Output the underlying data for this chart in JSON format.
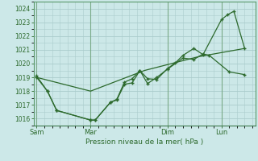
{
  "xlabel": "Pression niveau de la mer( hPa )",
  "background_color": "#cce8e8",
  "grid_color": "#aacccc",
  "line_color": "#2d6a2d",
  "ylim": [
    1015.5,
    1024.5
  ],
  "ytick_values": [
    1016,
    1017,
    1018,
    1019,
    1020,
    1021,
    1022,
    1023,
    1024
  ],
  "xtick_labels": [
    "Sam",
    "Mar",
    "Dim",
    "Lun"
  ],
  "xtick_positions": [
    0,
    3.5,
    8.5,
    12.0
  ],
  "xlim": [
    -0.2,
    14.2
  ],
  "series1_x": [
    0,
    0.7,
    1.3,
    3.5,
    3.8,
    4.8,
    5.2,
    5.7,
    6.2,
    6.7,
    7.2,
    7.8,
    8.5,
    9.5,
    10.2,
    10.8,
    11.2,
    12.5,
    13.5
  ],
  "series1_y": [
    1019.1,
    1018.0,
    1016.6,
    1015.9,
    1015.9,
    1017.2,
    1017.35,
    1018.5,
    1018.6,
    1019.5,
    1018.55,
    1019.0,
    1019.6,
    1020.4,
    1020.3,
    1020.7,
    1020.6,
    1019.4,
    1019.2
  ],
  "series2_x": [
    0,
    0.7,
    1.3,
    3.5,
    3.8,
    4.8,
    5.2,
    5.7,
    6.2,
    6.7,
    7.2,
    7.8,
    8.5,
    9.0,
    9.5,
    10.2,
    10.8,
    12.0,
    12.4,
    12.8,
    13.5
  ],
  "series2_y": [
    1019.0,
    1018.0,
    1016.6,
    1015.9,
    1015.9,
    1017.2,
    1017.4,
    1018.65,
    1018.9,
    1019.5,
    1018.9,
    1018.85,
    1019.65,
    1020.05,
    1020.6,
    1021.1,
    1020.65,
    1023.2,
    1023.55,
    1023.8,
    1021.1
  ],
  "series3_x": [
    0,
    3.5,
    7.0,
    10.5,
    13.5
  ],
  "series3_y": [
    1019.0,
    1018.0,
    1019.5,
    1020.5,
    1021.1
  ],
  "figsize": [
    3.2,
    2.0
  ],
  "dpi": 100
}
